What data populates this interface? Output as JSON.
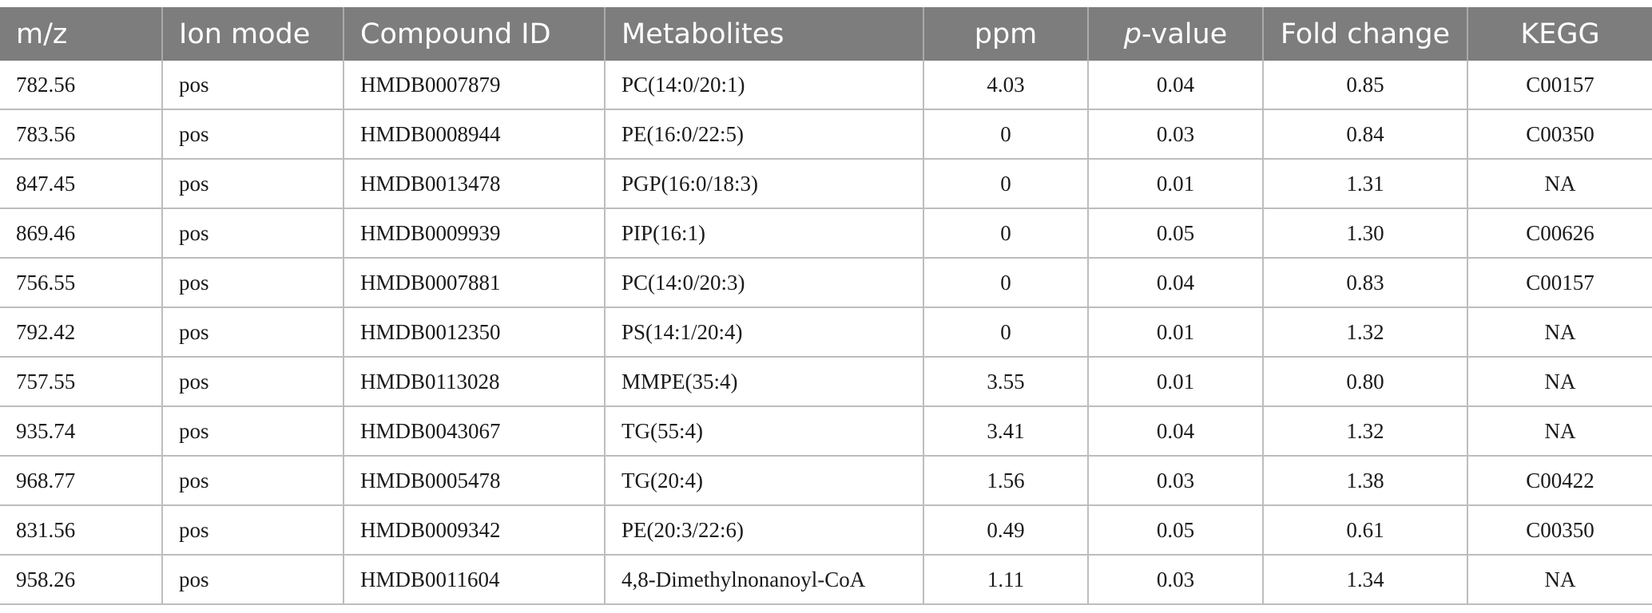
{
  "table": {
    "headers": {
      "mz": "m/z",
      "ion_mode": "Ion mode",
      "compound_id": "Compound ID",
      "metabolites": "Metabolites",
      "ppm": "ppm",
      "pvalue_italic": "p",
      "pvalue_rest": "-value",
      "fold_change": "Fold change",
      "kegg": "KEGG"
    },
    "rows": [
      {
        "mz": "782.56",
        "ion_mode": "pos",
        "compound_id": "HMDB0007879",
        "metabolite": "PC(14:0/20:1)",
        "ppm": "4.03",
        "p_value": "0.04",
        "fold_change": "0.85",
        "kegg": "C00157"
      },
      {
        "mz": "783.56",
        "ion_mode": "pos",
        "compound_id": "HMDB0008944",
        "metabolite": "PE(16:0/22:5)",
        "ppm": "0",
        "p_value": "0.03",
        "fold_change": "0.84",
        "kegg": "C00350"
      },
      {
        "mz": "847.45",
        "ion_mode": "pos",
        "compound_id": "HMDB0013478",
        "metabolite": "PGP(16:0/18:3)",
        "ppm": "0",
        "p_value": "0.01",
        "fold_change": "1.31",
        "kegg": "NA"
      },
      {
        "mz": "869.46",
        "ion_mode": "pos",
        "compound_id": "HMDB0009939",
        "metabolite": "PIP(16:1)",
        "ppm": "0",
        "p_value": "0.05",
        "fold_change": "1.30",
        "kegg": "C00626"
      },
      {
        "mz": "756.55",
        "ion_mode": "pos",
        "compound_id": "HMDB0007881",
        "metabolite": "PC(14:0/20:3)",
        "ppm": "0",
        "p_value": "0.04",
        "fold_change": "0.83",
        "kegg": "C00157"
      },
      {
        "mz": "792.42",
        "ion_mode": "pos",
        "compound_id": "HMDB0012350",
        "metabolite": "PS(14:1/20:4)",
        "ppm": "0",
        "p_value": "0.01",
        "fold_change": "1.32",
        "kegg": "NA"
      },
      {
        "mz": "757.55",
        "ion_mode": "pos",
        "compound_id": "HMDB0113028",
        "metabolite": "MMPE(35:4)",
        "ppm": "3.55",
        "p_value": "0.01",
        "fold_change": "0.80",
        "kegg": "NA"
      },
      {
        "mz": "935.74",
        "ion_mode": "pos",
        "compound_id": "HMDB0043067",
        "metabolite": "TG(55:4)",
        "ppm": "3.41",
        "p_value": "0.04",
        "fold_change": "1.32",
        "kegg": "NA"
      },
      {
        "mz": "968.77",
        "ion_mode": "pos",
        "compound_id": "HMDB0005478",
        "metabolite": "TG(20:4)",
        "ppm": "1.56",
        "p_value": "0.03",
        "fold_change": "1.38",
        "kegg": "C00422"
      },
      {
        "mz": "831.56",
        "ion_mode": "pos",
        "compound_id": "HMDB0009342",
        "metabolite": "PE(20:3/22:6)",
        "ppm": "0.49",
        "p_value": "0.05",
        "fold_change": "0.61",
        "kegg": "C00350"
      },
      {
        "mz": "958.26",
        "ion_mode": "pos",
        "compound_id": "HMDB0011604",
        "metabolite": "4,8-Dimethylnonanoyl-CoA",
        "ppm": "1.11",
        "p_value": "0.03",
        "fold_change": "1.34",
        "kegg": "NA"
      }
    ]
  }
}
